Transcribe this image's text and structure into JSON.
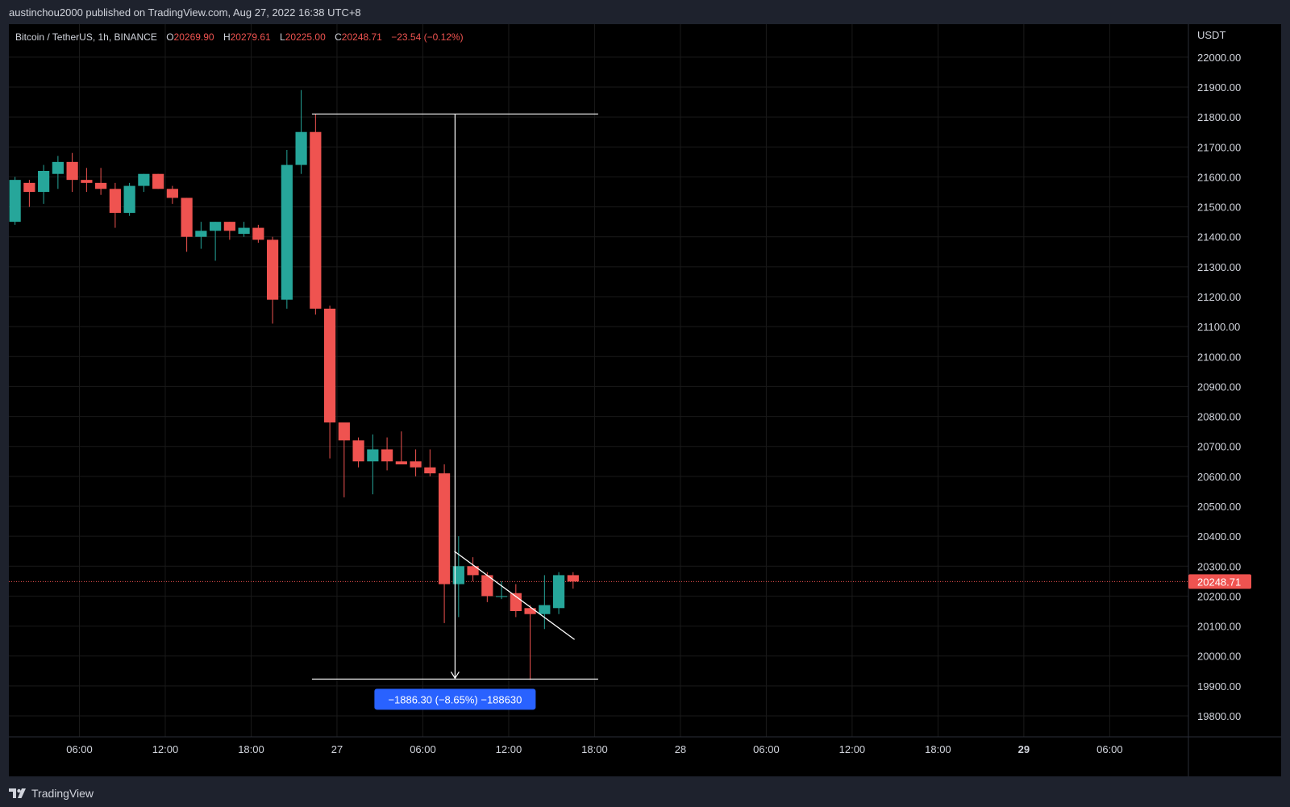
{
  "header": {
    "text": "austinchou2000 published on TradingView.com, Aug 27, 2022 16:38 UTC+8"
  },
  "footer": {
    "brand": "TradingView",
    "logo_icon": "tradingview-logo-icon"
  },
  "colors": {
    "up": "#26a69a",
    "down": "#ef5350",
    "grid": "#1a1a1a",
    "text": "#d1d4dc",
    "price_line": "#ef5350",
    "measure_label_bg": "#2962ff",
    "drawing": "#ffffff"
  },
  "legend": {
    "symbol": "Bitcoin / TetherUS, 1h, BINANCE",
    "o_label": "O",
    "o_value": "20269.90",
    "h_label": "H",
    "h_value": "20279.61",
    "l_label": "L",
    "l_value": "20225.00",
    "c_label": "C",
    "c_value": "20248.71",
    "change": "−23.54 (−0.12%)"
  },
  "price_axis": {
    "unit": "USDT",
    "current_price_label": "20248.71"
  },
  "measure": {
    "label": "−1886.30 (−8.65%) −188630",
    "from_price": 21810,
    "to_price": 19923
  },
  "chart_data": {
    "type": "candlestick",
    "title": "Bitcoin / TetherUS, 1h, BINANCE",
    "ylim": [
      19730,
      22110
    ],
    "y_ticks": [
      "22000.00",
      "21900.00",
      "21800.00",
      "21700.00",
      "21600.00",
      "21500.00",
      "21400.00",
      "21300.00",
      "21200.00",
      "21100.00",
      "21000.00",
      "20900.00",
      "20800.00",
      "20700.00",
      "20600.00",
      "20500.00",
      "20400.00",
      "20300.00",
      "20200.00",
      "20100.00",
      "20000.00",
      "19900.00",
      "19800.00"
    ],
    "x_ticks": [
      {
        "label": "06:00",
        "index": 4.5,
        "bold": false
      },
      {
        "label": "12:00",
        "index": 10.5,
        "bold": false
      },
      {
        "label": "18:00",
        "index": 16.5,
        "bold": false
      },
      {
        "label": "27",
        "index": 22.5,
        "bold": false
      },
      {
        "label": "06:00",
        "index": 28.5,
        "bold": false
      },
      {
        "label": "12:00",
        "index": 34.5,
        "bold": false
      },
      {
        "label": "18:00",
        "index": 40.5,
        "bold": false
      },
      {
        "label": "28",
        "index": 46.5,
        "bold": false
      },
      {
        "label": "06:00",
        "index": 52.5,
        "bold": false
      },
      {
        "label": "12:00",
        "index": 58.5,
        "bold": false
      },
      {
        "label": "18:00",
        "index": 64.5,
        "bold": false
      },
      {
        "label": "29",
        "index": 70.5,
        "bold": true
      },
      {
        "label": "06:00",
        "index": 76.5,
        "bold": false
      }
    ],
    "index_range": [
      -0.43,
      82.0
    ],
    "current_price": 20248.71,
    "candles": [
      {
        "o": 21450,
        "h": 21600,
        "l": 21440,
        "c": 21590
      },
      {
        "o": 21580,
        "h": 21590,
        "l": 21500,
        "c": 21550
      },
      {
        "o": 21550,
        "h": 21640,
        "l": 21510,
        "c": 21620
      },
      {
        "o": 21610,
        "h": 21670,
        "l": 21560,
        "c": 21650
      },
      {
        "o": 21650,
        "h": 21680,
        "l": 21550,
        "c": 21590
      },
      {
        "o": 21590,
        "h": 21630,
        "l": 21550,
        "c": 21580
      },
      {
        "o": 21580,
        "h": 21630,
        "l": 21540,
        "c": 21560
      },
      {
        "o": 21560,
        "h": 21580,
        "l": 21430,
        "c": 21480
      },
      {
        "o": 21480,
        "h": 21580,
        "l": 21470,
        "c": 21570
      },
      {
        "o": 21570,
        "h": 21610,
        "l": 21550,
        "c": 21610
      },
      {
        "o": 21610,
        "h": 21610,
        "l": 21560,
        "c": 21560
      },
      {
        "o": 21560,
        "h": 21570,
        "l": 21510,
        "c": 21530
      },
      {
        "o": 21530,
        "h": 21530,
        "l": 21350,
        "c": 21400
      },
      {
        "o": 21400,
        "h": 21450,
        "l": 21360,
        "c": 21420
      },
      {
        "o": 21420,
        "h": 21450,
        "l": 21320,
        "c": 21450
      },
      {
        "o": 21450,
        "h": 21450,
        "l": 21390,
        "c": 21420
      },
      {
        "o": 21410,
        "h": 21450,
        "l": 21400,
        "c": 21430
      },
      {
        "o": 21430,
        "h": 21440,
        "l": 21380,
        "c": 21390
      },
      {
        "o": 21390,
        "h": 21400,
        "l": 21110,
        "c": 21190
      },
      {
        "o": 21190,
        "h": 21690,
        "l": 21160,
        "c": 21640
      },
      {
        "o": 21640,
        "h": 21890,
        "l": 21610,
        "c": 21750
      },
      {
        "o": 21750,
        "h": 21810,
        "l": 21140,
        "c": 21160
      },
      {
        "o": 21160,
        "h": 21170,
        "l": 20660,
        "c": 20780
      },
      {
        "o": 20780,
        "h": 20780,
        "l": 20530,
        "c": 20720
      },
      {
        "o": 20720,
        "h": 20730,
        "l": 20630,
        "c": 20650
      },
      {
        "o": 20650,
        "h": 20740,
        "l": 20540,
        "c": 20690
      },
      {
        "o": 20690,
        "h": 20730,
        "l": 20620,
        "c": 20650
      },
      {
        "o": 20650,
        "h": 20750,
        "l": 20640,
        "c": 20640
      },
      {
        "o": 20650,
        "h": 20690,
        "l": 20600,
        "c": 20630
      },
      {
        "o": 20630,
        "h": 20690,
        "l": 20600,
        "c": 20610
      },
      {
        "o": 20610,
        "h": 20640,
        "l": 20110,
        "c": 20240
      },
      {
        "o": 20240,
        "h": 20400,
        "l": 20130,
        "c": 20300
      },
      {
        "o": 20300,
        "h": 20330,
        "l": 20250,
        "c": 20270
      },
      {
        "o": 20270,
        "h": 20280,
        "l": 20180,
        "c": 20200
      },
      {
        "o": 20200,
        "h": 20250,
        "l": 20190,
        "c": 20200
      },
      {
        "o": 20210,
        "h": 20240,
        "l": 20130,
        "c": 20150
      },
      {
        "o": 20160,
        "h": 20170,
        "l": 19920,
        "c": 20140
      },
      {
        "o": 20140,
        "h": 20270,
        "l": 20090,
        "c": 20170
      },
      {
        "o": 20160,
        "h": 20280,
        "l": 20140,
        "c": 20270
      },
      {
        "o": 20270,
        "h": 20280,
        "l": 20225,
        "c": 20248.71
      }
    ],
    "trendline": [
      {
        "index": 30.7,
        "price": 20350
      },
      {
        "index": 39.1,
        "price": 20055
      }
    ],
    "measure_levels": {
      "top": 21810,
      "bottom": 19923,
      "from_index": 20.75,
      "to_index": 40.75,
      "arrow_index": 30.75
    }
  }
}
